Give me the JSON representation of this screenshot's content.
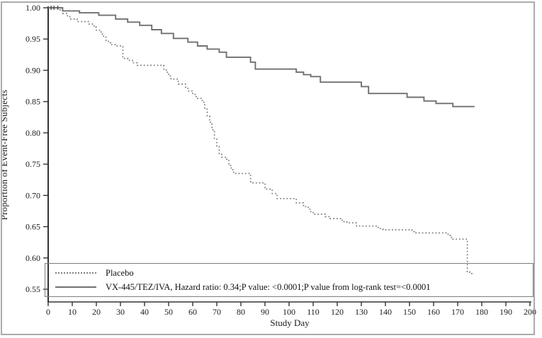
{
  "figure": {
    "background": "#ffffff",
    "frame_color": "#ababab"
  },
  "chart_data": {
    "type": "line",
    "subtype": "kaplan_meier_step",
    "title": "",
    "xlabel": "Study Day",
    "ylabel": "Proportion of Event-Free Subjects",
    "xlim": [
      0,
      200
    ],
    "ylim": [
      0.55,
      1.0
    ],
    "grid": false,
    "legend_position": "bottom-inside-box",
    "xticks": [
      0,
      10,
      20,
      30,
      40,
      50,
      60,
      70,
      80,
      90,
      100,
      110,
      120,
      130,
      140,
      150,
      160,
      170,
      180,
      190,
      200
    ],
    "xtick_labels": [
      "0",
      "10",
      "20",
      "30",
      "40",
      "50",
      "60",
      "70",
      "80",
      "90",
      "100",
      "110",
      "120",
      "130",
      "140",
      "150",
      "160",
      "170",
      "180",
      "190",
      "200"
    ],
    "yticks": [
      1.0,
      0.95,
      0.9,
      0.85,
      0.8,
      0.75,
      0.7,
      0.65,
      0.6,
      0.55
    ],
    "ytick_labels": [
      "1.00",
      "0.95",
      "0.90",
      "0.85",
      "0.80",
      "0.75",
      "0.70",
      "0.65",
      "0.60",
      "0.55"
    ],
    "series": [
      {
        "name": "Placebo",
        "line_style": "dotted",
        "color": "#7f7f7f",
        "end_day": 177,
        "step_points": [
          [
            0,
            1.0
          ],
          [
            5,
            0.996
          ],
          [
            6,
            0.991
          ],
          [
            8,
            0.986
          ],
          [
            9,
            0.982
          ],
          [
            12,
            0.978
          ],
          [
            17,
            0.974
          ],
          [
            19,
            0.969
          ],
          [
            20,
            0.964
          ],
          [
            22,
            0.958
          ],
          [
            23,
            0.953
          ],
          [
            24,
            0.948
          ],
          [
            25,
            0.944
          ],
          [
            26,
            0.941
          ],
          [
            28,
            0.939
          ],
          [
            31,
            0.919
          ],
          [
            33,
            0.916
          ],
          [
            35,
            0.912
          ],
          [
            37,
            0.908
          ],
          [
            48,
            0.902
          ],
          [
            49,
            0.897
          ],
          [
            50,
            0.891
          ],
          [
            51,
            0.886
          ],
          [
            54,
            0.878
          ],
          [
            57,
            0.873
          ],
          [
            58,
            0.867
          ],
          [
            60,
            0.863
          ],
          [
            61,
            0.858
          ],
          [
            62,
            0.855
          ],
          [
            64,
            0.849
          ],
          [
            65,
            0.838
          ],
          [
            66,
            0.827
          ],
          [
            67,
            0.817
          ],
          [
            68,
            0.805
          ],
          [
            69,
            0.79
          ],
          [
            70,
            0.778
          ],
          [
            71,
            0.767
          ],
          [
            72,
            0.761
          ],
          [
            74,
            0.758
          ],
          [
            75,
            0.748
          ],
          [
            76,
            0.741
          ],
          [
            77,
            0.735
          ],
          [
            84,
            0.722
          ],
          [
            85,
            0.72
          ],
          [
            90,
            0.71
          ],
          [
            93,
            0.703
          ],
          [
            95,
            0.695
          ],
          [
            103,
            0.688
          ],
          [
            106,
            0.682
          ],
          [
            108,
            0.678
          ],
          [
            109,
            0.674
          ],
          [
            110,
            0.67
          ],
          [
            115,
            0.666
          ],
          [
            117,
            0.663
          ],
          [
            122,
            0.658
          ],
          [
            124,
            0.656
          ],
          [
            128,
            0.651
          ],
          [
            137,
            0.647
          ],
          [
            139,
            0.645
          ],
          [
            151,
            0.642
          ],
          [
            152,
            0.64
          ],
          [
            166,
            0.636
          ],
          [
            167,
            0.633
          ],
          [
            168,
            0.63
          ],
          [
            174,
            0.578
          ],
          [
            175,
            0.575
          ]
        ],
        "censor_marks": []
      },
      {
        "name": "VX-445/TEZ/IVA, Hazard ratio: 0.34;P value: <0.0001;P value from log-rank test=<0.0001",
        "line_style": "solid",
        "color": "#707070",
        "end_day": 177,
        "step_points": [
          [
            0,
            1.0
          ],
          [
            6,
            0.995
          ],
          [
            13,
            0.992
          ],
          [
            21,
            0.988
          ],
          [
            28,
            0.982
          ],
          [
            33,
            0.977
          ],
          [
            38,
            0.972
          ],
          [
            43,
            0.965
          ],
          [
            47,
            0.959
          ],
          [
            52,
            0.951
          ],
          [
            58,
            0.945
          ],
          [
            62,
            0.939
          ],
          [
            66,
            0.934
          ],
          [
            71,
            0.929
          ],
          [
            74,
            0.921
          ],
          [
            84,
            0.913
          ],
          [
            86,
            0.902
          ],
          [
            103,
            0.897
          ],
          [
            106,
            0.893
          ],
          [
            109,
            0.89
          ],
          [
            113,
            0.881
          ],
          [
            130,
            0.874
          ],
          [
            133,
            0.863
          ],
          [
            149,
            0.857
          ],
          [
            156,
            0.851
          ],
          [
            161,
            0.847
          ],
          [
            168,
            0.842
          ]
        ],
        "censor_marks": [
          [
            1.2,
            1.0
          ],
          [
            2.4,
            1.0
          ],
          [
            4.0,
            1.0
          ]
        ]
      }
    ],
    "annotations": {
      "hazard_ratio": "0.34",
      "p_value": "<0.0001",
      "log_rank_p_value": "<0.0001"
    }
  },
  "legend": {
    "items": [
      {
        "label": "Placebo",
        "swatch": "dotted"
      },
      {
        "label": "VX-445/TEZ/IVA, Hazard ratio: 0.34;P value: <0.0001;P value from log-rank test=<0.0001",
        "swatch": "solid"
      }
    ]
  },
  "axis_style": {
    "line_color": "#333333",
    "text_color": "#1a1a1a"
  }
}
